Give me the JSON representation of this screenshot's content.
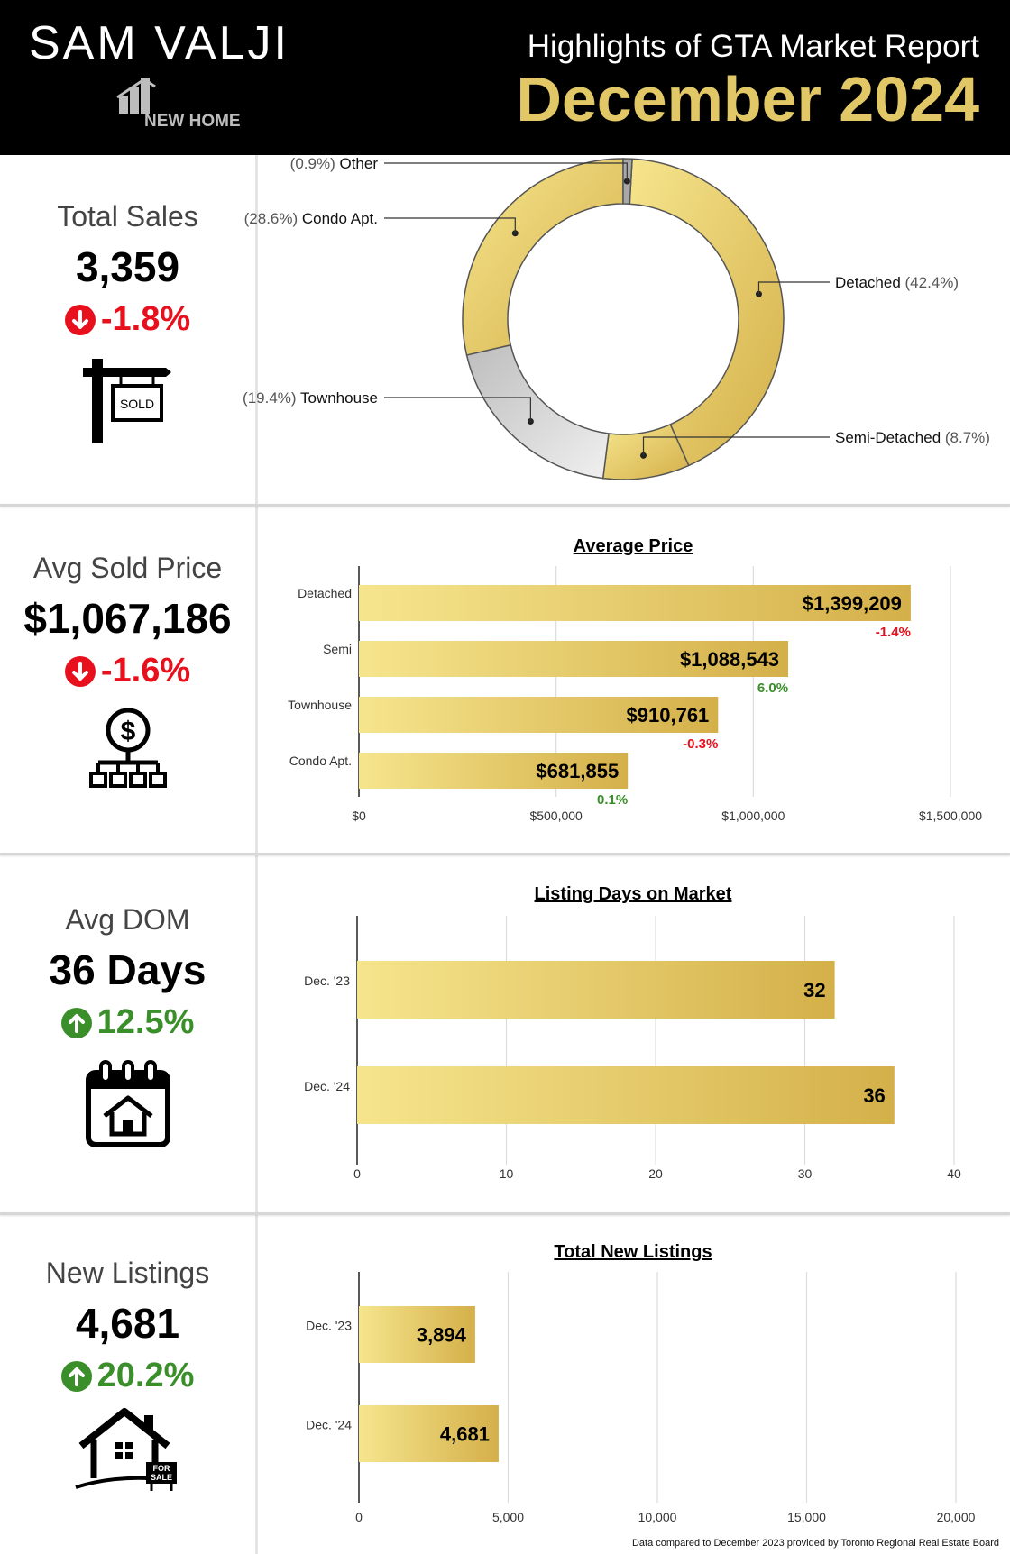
{
  "header": {
    "brand_name": "SAM VALJI",
    "logo_text": "NEW HOME",
    "report_title": "Highlights of GTA Market Report",
    "report_month": "December 2024"
  },
  "colors": {
    "gold_light": "#f6e58d",
    "gold_dark": "#d4b04a",
    "gray_slice": "#d9d9d9",
    "negative": "#e8101d",
    "positive": "#3a8f2a"
  },
  "metrics": [
    {
      "label": "Total Sales",
      "value": "3,359",
      "change": "-1.8%",
      "direction": "down",
      "icon": "sold-sign-icon",
      "icon_text": "SOLD"
    },
    {
      "label": "Avg Sold Price",
      "value": "$1,067,186",
      "change": "-1.6%",
      "direction": "down",
      "icon": "dollar-network-icon"
    },
    {
      "label": "Avg DOM",
      "value": "36 Days",
      "change": "12.5%",
      "direction": "up",
      "icon": "calendar-house-icon"
    },
    {
      "label": "New Listings",
      "value": "4,681",
      "change": "20.2%",
      "direction": "up",
      "icon": "house-for-sale-icon",
      "icon_text_1": "FOR",
      "icon_text_2": "SALE"
    }
  ],
  "chart_data": [
    {
      "type": "pie",
      "slices": [
        {
          "label": "Detached",
          "pct_label": "(42.4%)",
          "value": 42.4,
          "color": "#e9cf6c"
        },
        {
          "label": "Semi-Detached",
          "pct_label": "(8.7%)",
          "value": 8.7,
          "color": "#e6cb62"
        },
        {
          "label": "Townhouse",
          "pct_label": "(19.4%)",
          "value": 19.4,
          "color": "#d6d6d6"
        },
        {
          "label": "Condo Apt.",
          "pct_label": "(28.6%)",
          "value": 28.6,
          "color": "#edd77a"
        },
        {
          "label": "Other",
          "pct_label": "(0.9%)",
          "value": 0.9,
          "color": "#a8a8a8"
        }
      ]
    },
    {
      "type": "bar",
      "title": "Average Price",
      "categories": [
        "Detached",
        "Semi",
        "Townhouse",
        "Condo Apt."
      ],
      "values": [
        1399209,
        1088543,
        910761,
        681855
      ],
      "value_labels": [
        "$1,399,209",
        "$1,088,543",
        "$910,761",
        "$681,855"
      ],
      "change_labels": [
        "-1.4%",
        "6.0%",
        "-0.3%",
        "0.1%"
      ],
      "change_direction": [
        "down",
        "up",
        "down",
        "up"
      ],
      "xlim": [
        0,
        1500000
      ],
      "ticks": [
        0,
        500000,
        1000000,
        1500000
      ],
      "tick_labels": [
        "$0",
        "$500,000",
        "$1,000,000",
        "$1,500,000"
      ]
    },
    {
      "type": "bar",
      "title": "Listing Days on Market",
      "categories": [
        "Dec. '23",
        "Dec. '24"
      ],
      "values": [
        32,
        36
      ],
      "value_labels": [
        "32",
        "36"
      ],
      "xlim": [
        0,
        40
      ],
      "ticks": [
        0,
        10,
        20,
        30,
        40
      ],
      "tick_labels": [
        "0",
        "10",
        "20",
        "30",
        "40"
      ]
    },
    {
      "type": "bar",
      "title": "Total New Listings",
      "categories": [
        "Dec. '23",
        "Dec. '24"
      ],
      "values": [
        3894,
        4681
      ],
      "value_labels": [
        "3,894",
        "4,681"
      ],
      "xlim": [
        0,
        20000
      ],
      "ticks": [
        0,
        5000,
        10000,
        15000,
        20000
      ],
      "tick_labels": [
        "0",
        "5,000",
        "10,000",
        "15,000",
        "20,000"
      ]
    }
  ],
  "footer": {
    "note": "Data compared to December 2023 provided by Toronto Regional Real Estate Board"
  }
}
